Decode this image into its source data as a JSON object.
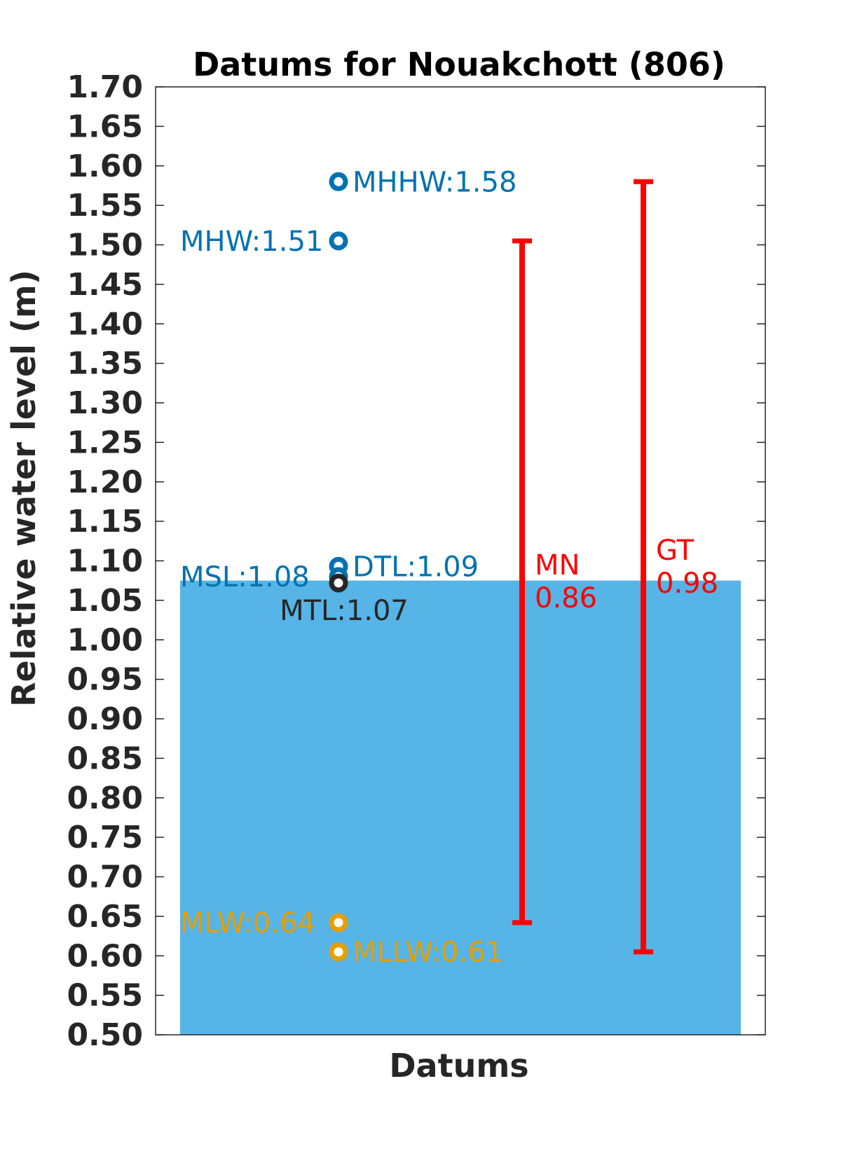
{
  "chart_data": {
    "type": "scatter",
    "title": "Datums for Nouakchott (806)",
    "xlabel": "Datums",
    "ylabel": "Relative water level (m)",
    "ylim": [
      0.5,
      1.7
    ],
    "ytick_step": 0.05,
    "grid": false,
    "bar": {
      "value": 1.075,
      "color": "#56b4e6"
    },
    "points": [
      {
        "label": "MHHW:1.58",
        "value": 1.58,
        "color": "#0072b2",
        "side": "right"
      },
      {
        "label": "MHW:1.51",
        "value": 1.505,
        "color": "#0072b2",
        "side": "left"
      },
      {
        "label": "DTL:1.09",
        "value": 1.093,
        "color": "#0072b2",
        "side": "right"
      },
      {
        "label": "MSL:1.08",
        "value": 1.08,
        "color": "#0072b2",
        "side": "left"
      },
      {
        "label": "MTL:1.07",
        "value": 1.072,
        "color": "#262626",
        "side": "below"
      },
      {
        "label": "MLW:0.64",
        "value": 0.642,
        "color": "#e69f00",
        "side": "left"
      },
      {
        "label": "MLLW:0.61",
        "value": 0.605,
        "color": "#e69f00",
        "side": "right"
      }
    ],
    "ranges": [
      {
        "name": "MN",
        "value_text": "0.86",
        "low": 0.642,
        "high": 1.505,
        "color": "#ff0000"
      },
      {
        "name": "GT",
        "value_text": "0.98",
        "low": 0.605,
        "high": 1.58,
        "color": "#ff0000"
      }
    ]
  }
}
